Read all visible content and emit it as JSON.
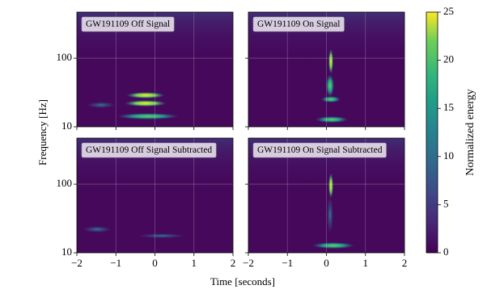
{
  "chart_data": {
    "type": "spectrogram",
    "panels": [
      {
        "title": "GW191109 Off Signal"
      },
      {
        "title": "GW191109 On Signal"
      },
      {
        "title": "GW191109 Off Signal Subtracted"
      },
      {
        "title": "GW191109 On Signal Subtracted"
      }
    ],
    "xlabel": "Time [seconds]",
    "ylabel": "Frequency [Hz]",
    "xlim": [
      -2,
      2
    ],
    "xticks": [
      {
        "value": -2,
        "label": "−2"
      },
      {
        "value": -1,
        "label": "−1"
      },
      0,
      1,
      2
    ],
    "ylim": [
      10,
      470
    ],
    "yticks": [
      10,
      100
    ],
    "ylog": true,
    "grid": true,
    "colorbar": {
      "label": "Normalized energy",
      "lim": [
        0,
        25
      ],
      "ticks": [
        0,
        5,
        10,
        15,
        20,
        25
      ]
    }
  }
}
